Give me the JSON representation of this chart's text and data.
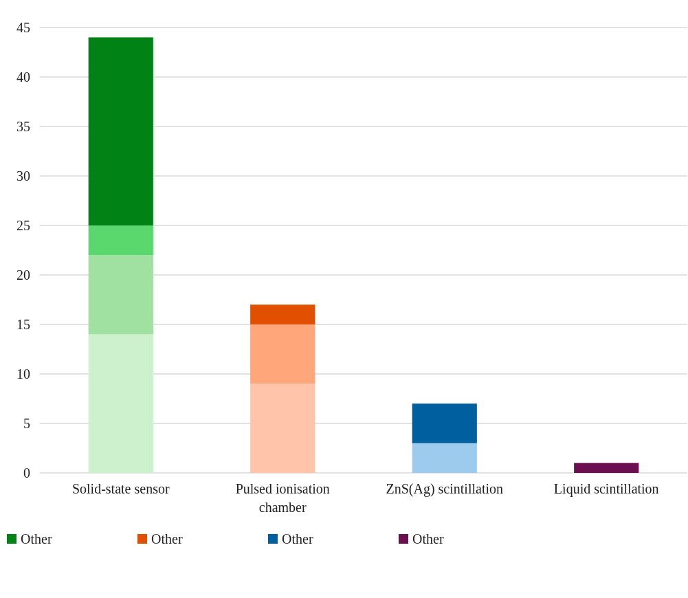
{
  "chart_data": {
    "type": "bar",
    "stacked": true,
    "categories": [
      "Solid-state sensor",
      "Pulsed ionisation chamber",
      "ZnS(Ag) scintillation",
      "Liquid scintillation"
    ],
    "series": [
      {
        "color": "#cdf0cd",
        "values": [
          14,
          null,
          null,
          null
        ]
      },
      {
        "color": "#a0e0a0",
        "values": [
          8,
          null,
          null,
          null
        ]
      },
      {
        "color": "#5ad86e",
        "values": [
          3,
          null,
          null,
          null
        ]
      },
      {
        "name": "Other",
        "color": "#008214",
        "values": [
          19,
          null,
          null,
          null
        ]
      },
      {
        "color": "#ffc4aa",
        "values": [
          null,
          9,
          null,
          null
        ]
      },
      {
        "color": "#ffa77a",
        "values": [
          null,
          6,
          null,
          null
        ]
      },
      {
        "name": "Other",
        "color": "#e05000",
        "values": [
          null,
          2,
          null,
          null
        ]
      },
      {
        "color": "#9ccbee",
        "values": [
          null,
          null,
          3,
          null
        ]
      },
      {
        "name": "Other",
        "color": "#005f9f",
        "values": [
          null,
          null,
          4,
          null
        ]
      },
      {
        "name": "Other",
        "color": "#6a1050",
        "values": [
          null,
          null,
          null,
          1
        ]
      }
    ],
    "ylim": [
      0,
      45
    ],
    "yticks": [
      0,
      5,
      10,
      15,
      20,
      25,
      30,
      35,
      40,
      45
    ],
    "grid": "y",
    "legend": "bottom"
  }
}
